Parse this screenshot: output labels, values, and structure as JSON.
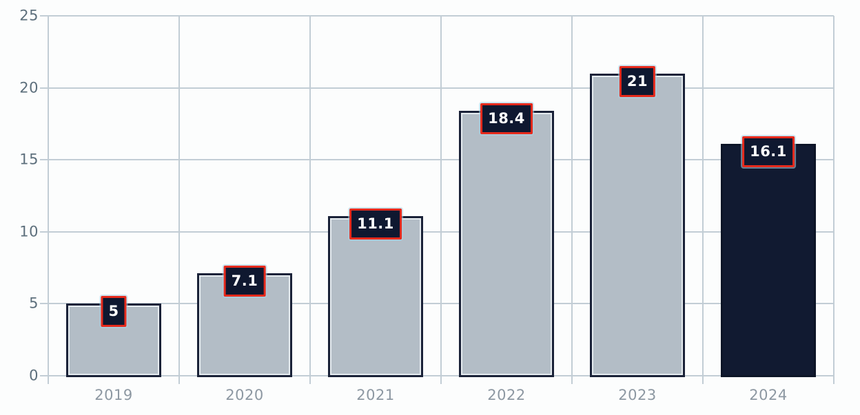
{
  "chart_data": {
    "type": "bar",
    "title": "",
    "xlabel": "",
    "ylabel": "",
    "categories": [
      "2019",
      "2020",
      "2021",
      "2022",
      "2023",
      "2024"
    ],
    "values": [
      5,
      7.1,
      11.1,
      18.4,
      21,
      16.1
    ],
    "value_labels": [
      "5",
      "7.1",
      "11.1",
      "18.4",
      "21",
      "16.1"
    ],
    "ylim": [
      0,
      25
    ],
    "yticks": [
      0,
      5,
      10,
      15,
      20,
      25
    ],
    "ytick_labels": [
      "0",
      "5",
      "10",
      "15",
      "20",
      "25"
    ],
    "grid": true,
    "legend": false,
    "highlight_index": 5,
    "colors": {
      "background": "#fcfdfd",
      "gridline": "#c2cdd5",
      "y_tick_label": "#5d6f7c",
      "x_tick_label": "#8d98a2",
      "bar_fill": "#b3bdc6",
      "bar_border": "#1a2238",
      "bar_inner_highlight": "#e6ecf0",
      "highlight_bar_fill": "#111a31",
      "highlight_bar_border": "#0d1527",
      "value_label_bg": "#0f1830",
      "value_label_border": "#e62a1c",
      "value_label_text": "#ffffff"
    }
  }
}
